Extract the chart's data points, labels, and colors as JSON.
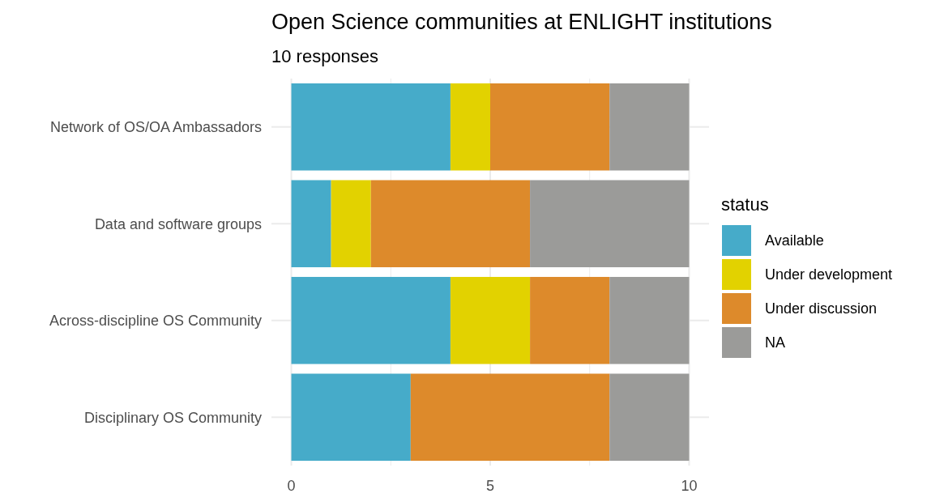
{
  "chart_data": {
    "type": "bar",
    "orientation": "horizontal",
    "stacked": true,
    "title": "Open Science communities at ENLIGHT institutions",
    "subtitle": "10 responses",
    "categories": [
      "Network of OS/OA Ambassadors",
      "Data and software groups",
      "Across-discipline OS Community",
      "Disciplinary OS Community"
    ],
    "series": [
      {
        "name": "Available",
        "color": "#46abc9",
        "values": [
          4,
          1,
          4,
          3
        ]
      },
      {
        "name": "Under development",
        "color": "#e2d200",
        "values": [
          1,
          1,
          2,
          0
        ]
      },
      {
        "name": "Under discussion",
        "color": "#dd8a2b",
        "values": [
          3,
          4,
          2,
          5
        ]
      },
      {
        "name": "NA",
        "color": "#9b9b99",
        "values": [
          2,
          4,
          2,
          2
        ]
      }
    ],
    "legend_title": "status",
    "legend": "right",
    "grid": true,
    "xlim": [
      -0.5,
      10.5
    ],
    "xticks": [
      0,
      {
        "value": 2.5,
        "label": null
      },
      5,
      {
        "value": 7.5,
        "label": null
      },
      10
    ]
  }
}
